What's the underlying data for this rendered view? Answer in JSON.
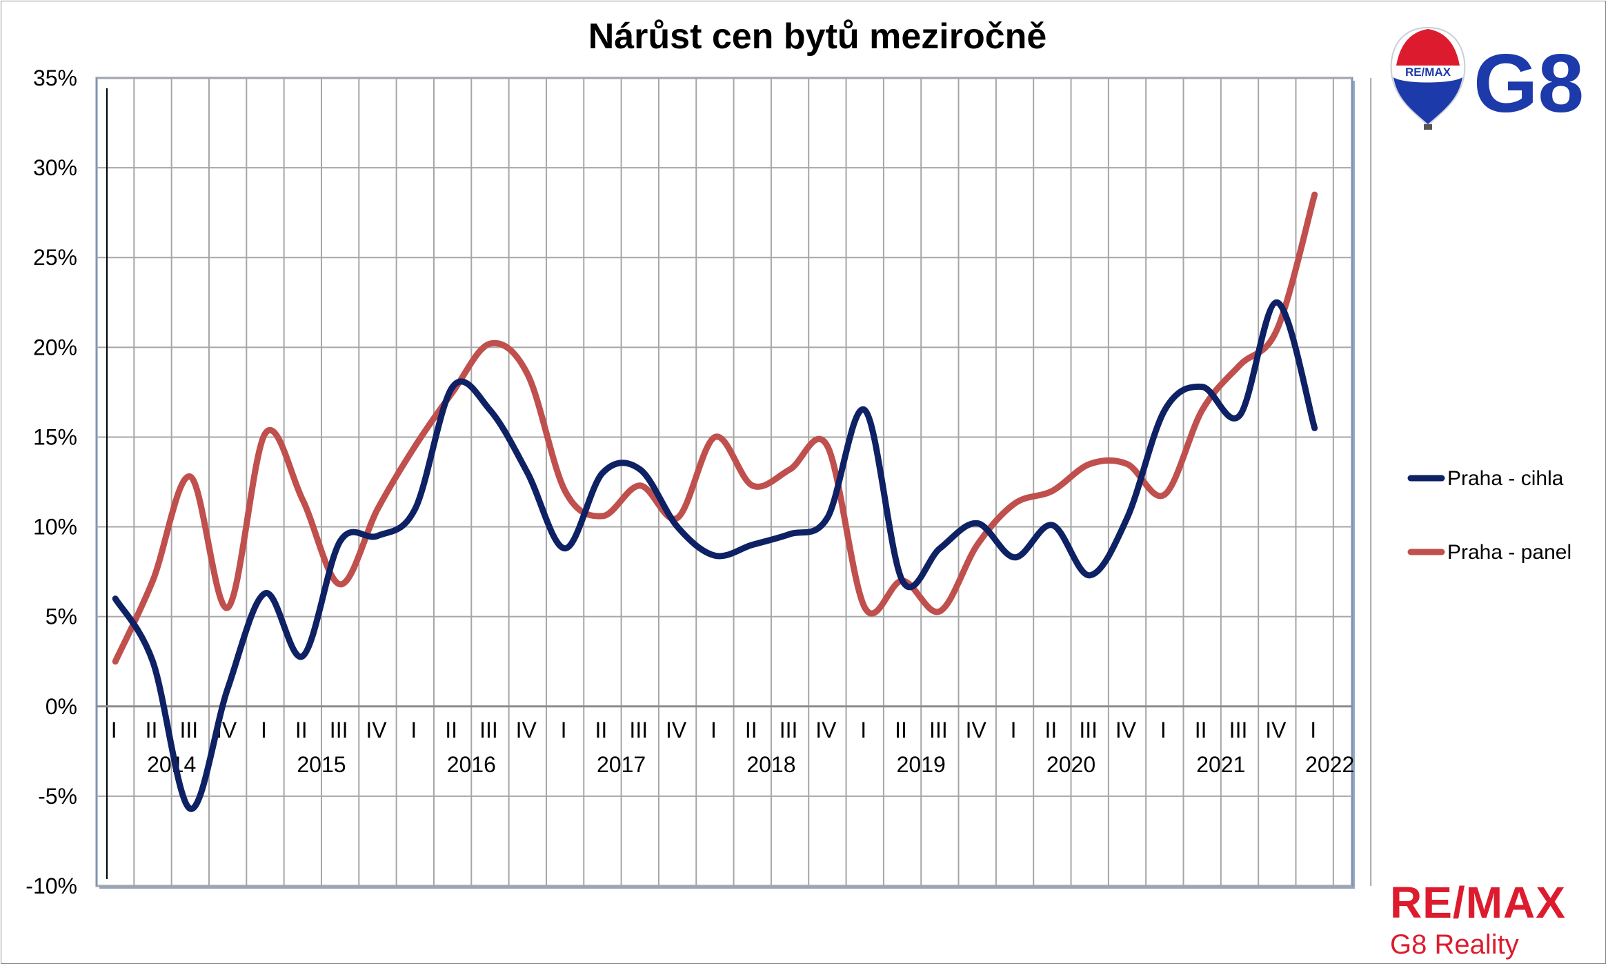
{
  "chart_data": {
    "type": "line",
    "title": "Nárůst cen bytů meziročně",
    "ylim": [
      -10,
      35
    ],
    "ytick_labels": [
      "-10%",
      "-5%",
      "0%",
      "5%",
      "10%",
      "15%",
      "20%",
      "25%",
      "30%",
      "35%"
    ],
    "quarter_labels": [
      "I",
      "II",
      "III",
      "IV",
      "I",
      "II",
      "III",
      "IV",
      "I",
      "II",
      "III",
      "IV",
      "I",
      "II",
      "III",
      "IV",
      "I",
      "II",
      "III",
      "IV",
      "I",
      "II",
      "III",
      "IV",
      "I",
      "II",
      "III",
      "IV",
      "I",
      "II",
      "III",
      "IV",
      "I"
    ],
    "year_labels": [
      "2014",
      "2015",
      "2016",
      "2017",
      "2018",
      "2019",
      "2020",
      "2021",
      "2022"
    ],
    "grid": true,
    "legend_position": "right",
    "series": [
      {
        "name": "Praha - cihla",
        "color": "#0e2164",
        "values": [
          6.0,
          2.5,
          -5.7,
          1.0,
          6.3,
          2.8,
          9.2,
          9.5,
          11.0,
          17.8,
          16.5,
          13.0,
          8.8,
          13.0,
          13.2,
          10.0,
          8.4,
          9.0,
          9.6,
          10.5,
          16.5,
          7.0,
          8.8,
          10.2,
          8.3,
          10.1,
          7.3,
          10.5,
          16.5,
          17.8,
          16.2,
          22.5,
          15.5
        ]
      },
      {
        "name": "Praha - panel",
        "color": "#c0504d",
        "values": [
          2.5,
          7.0,
          12.8,
          5.5,
          15.2,
          11.5,
          6.8,
          11.0,
          14.5,
          17.5,
          20.2,
          18.5,
          12.0,
          10.6,
          12.3,
          10.5,
          15.0,
          12.3,
          13.2,
          14.5,
          5.5,
          7.0,
          5.3,
          9.0,
          11.3,
          12.0,
          13.5,
          13.5,
          11.8,
          16.5,
          19.0,
          21.0,
          28.5
        ]
      }
    ]
  },
  "logos": {
    "top_balloon_text": "RE/MAX",
    "top_brand": "G8",
    "bottom_brand": "RE/MAX",
    "bottom_sub": "G8 Reality",
    "brand_red": "#dc1c2e",
    "brand_blue": "#1c3aa9"
  }
}
